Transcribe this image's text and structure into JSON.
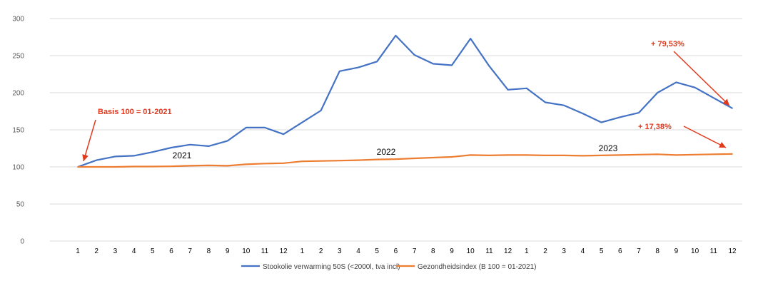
{
  "chart_data": {
    "type": "line",
    "title": "",
    "xlabel": "",
    "ylabel": "",
    "ylim": [
      0,
      300
    ],
    "yticks": [
      0,
      50,
      100,
      150,
      200,
      250,
      300
    ],
    "categories": [
      "1",
      "2",
      "3",
      "4",
      "5",
      "6",
      "7",
      "8",
      "9",
      "10",
      "11",
      "12",
      "1",
      "2",
      "3",
      "4",
      "5",
      "6",
      "7",
      "8",
      "9",
      "10",
      "11",
      "12",
      "1",
      "2",
      "3",
      "4",
      "5",
      "6",
      "7",
      "8",
      "9",
      "10",
      "11",
      "12"
    ],
    "series": [
      {
        "name": "Stookolie verwarming 50S (<2000l, tva incl)",
        "color": "#4472c4",
        "values": [
          100,
          109,
          114,
          115,
          120,
          126,
          130,
          128,
          135,
          153,
          153,
          144,
          160,
          176,
          229,
          234,
          242,
          277,
          251,
          239,
          237,
          273,
          236,
          204,
          206,
          187,
          183,
          172,
          160,
          167,
          173,
          200,
          214,
          207,
          193,
          179
        ]
      },
      {
        "name": "Gezondheidsindex (B 100 = 01-2021)",
        "color": "#ed7d31",
        "values": [
          100,
          100,
          100,
          100.5,
          100.5,
          100.8,
          101.5,
          102,
          101.5,
          103.5,
          104.5,
          105,
          107.5,
          108,
          108.5,
          109,
          110,
          110.5,
          111.5,
          112.5,
          113.5,
          116,
          115.5,
          116,
          116,
          115.5,
          115.5,
          115,
          115.5,
          116,
          116.5,
          117,
          116,
          116.5,
          117,
          117.4
        ]
      }
    ],
    "year_labels": [
      "2021",
      "2022",
      "2023"
    ],
    "annotations": {
      "basis": "Basis 100 = 01-2021",
      "oil_change": "+ 79,53%",
      "health_change": "+ 17,38%"
    },
    "legend": "bottom",
    "grid": true,
    "annotation_color": "#e03a1e"
  }
}
